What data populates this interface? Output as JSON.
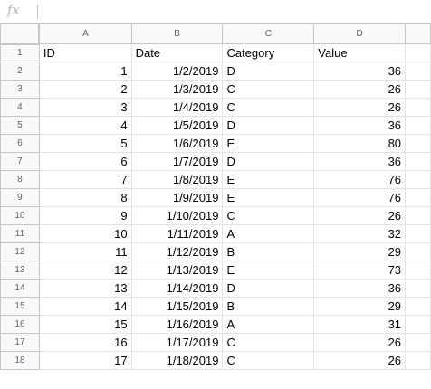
{
  "formula_bar": {
    "fx_label": "fx",
    "value": ""
  },
  "columns": [
    "A",
    "B",
    "C",
    "D"
  ],
  "rows": [
    {
      "n": "1",
      "cells": [
        "ID",
        "Date",
        "Category",
        "Value"
      ]
    },
    {
      "n": "2",
      "cells": [
        "1",
        "1/2/2019",
        "D",
        "36"
      ]
    },
    {
      "n": "3",
      "cells": [
        "2",
        "1/3/2019",
        "C",
        "26"
      ]
    },
    {
      "n": "4",
      "cells": [
        "3",
        "1/4/2019",
        "C",
        "26"
      ]
    },
    {
      "n": "5",
      "cells": [
        "4",
        "1/5/2019",
        "D",
        "36"
      ]
    },
    {
      "n": "6",
      "cells": [
        "5",
        "1/6/2019",
        "E",
        "80"
      ]
    },
    {
      "n": "7",
      "cells": [
        "6",
        "1/7/2019",
        "D",
        "36"
      ]
    },
    {
      "n": "8",
      "cells": [
        "7",
        "1/8/2019",
        "E",
        "76"
      ]
    },
    {
      "n": "9",
      "cells": [
        "8",
        "1/9/2019",
        "E",
        "76"
      ]
    },
    {
      "n": "10",
      "cells": [
        "9",
        "1/10/2019",
        "C",
        "26"
      ]
    },
    {
      "n": "11",
      "cells": [
        "10",
        "1/11/2019",
        "A",
        "32"
      ]
    },
    {
      "n": "12",
      "cells": [
        "11",
        "1/12/2019",
        "B",
        "29"
      ]
    },
    {
      "n": "13",
      "cells": [
        "12",
        "1/13/2019",
        "E",
        "73"
      ]
    },
    {
      "n": "14",
      "cells": [
        "13",
        "1/14/2019",
        "D",
        "36"
      ]
    },
    {
      "n": "15",
      "cells": [
        "14",
        "1/15/2019",
        "B",
        "29"
      ]
    },
    {
      "n": "16",
      "cells": [
        "15",
        "1/16/2019",
        "A",
        "31"
      ]
    },
    {
      "n": "17",
      "cells": [
        "16",
        "1/17/2019",
        "C",
        "26"
      ]
    },
    {
      "n": "18",
      "cells": [
        "17",
        "1/18/2019",
        "C",
        "26"
      ]
    }
  ]
}
